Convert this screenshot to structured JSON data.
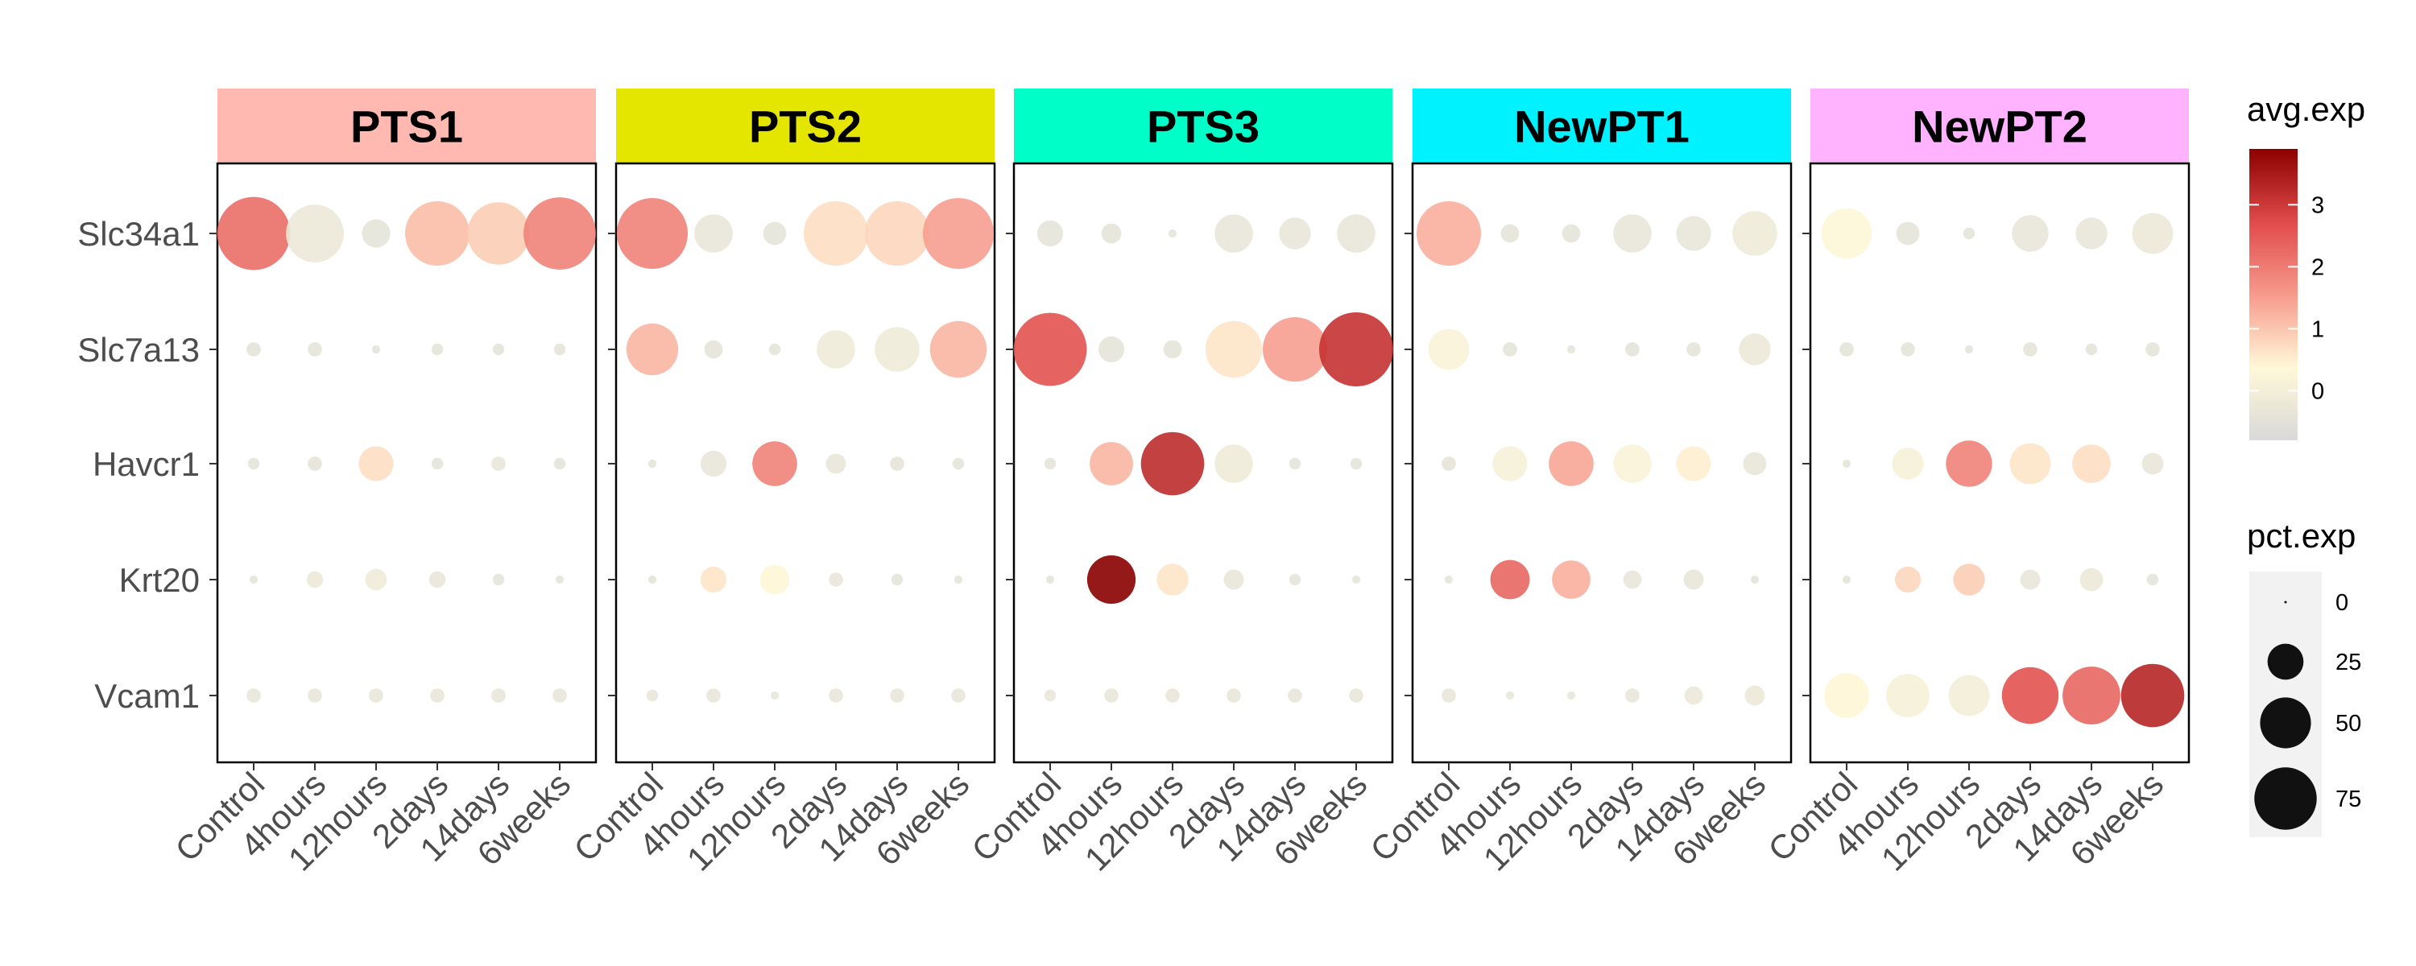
{
  "chart_data": {
    "type": "scatter",
    "facets": [
      {
        "name": "PTS1",
        "color": "#FFB9B0"
      },
      {
        "name": "PTS2",
        "color": "#E5E600"
      },
      {
        "name": "PTS3",
        "color": "#00FFC8"
      },
      {
        "name": "NewPT1",
        "color": "#00F2FF"
      },
      {
        "name": "NewPT2",
        "color": "#FFB3FF"
      }
    ],
    "genes": [
      "Slc34a1",
      "Slc7a13",
      "Havcr1",
      "Krt20",
      "Vcam1"
    ],
    "timepoints": [
      "Control",
      "4hours",
      "12hours",
      "2days",
      "14days",
      "6weeks"
    ],
    "pct_legend": {
      "title": "pct.exp",
      "breaks": [
        0,
        25,
        50,
        75
      ]
    },
    "avg_legend": {
      "title": "avg.exp",
      "breaks": [
        0,
        1,
        2,
        3
      ],
      "range": [
        -0.8,
        3.9
      ],
      "colors": [
        "#d9d9d9",
        "#fff8d8",
        "#f79a8c",
        "#e04a4a",
        "#8b0000"
      ]
    },
    "data": {
      "PTS1": {
        "Slc34a1": {
          "avg": [
            2.2,
            -0.2,
            -0.4,
            1.1,
            0.9,
            1.9
          ],
          "pct": [
            80,
            50,
            12,
            62,
            58,
            78
          ]
        },
        "Slc7a13": {
          "avg": [
            -0.4,
            -0.4,
            -0.4,
            -0.4,
            -0.4,
            -0.4
          ],
          "pct": [
            3,
            3,
            1,
            2,
            2,
            2
          ]
        },
        "Havcr1": {
          "avg": [
            -0.4,
            -0.4,
            0.7,
            -0.4,
            -0.3,
            -0.4
          ],
          "pct": [
            2,
            3,
            18,
            2,
            3,
            2
          ]
        },
        "Krt20": {
          "avg": [
            -0.4,
            -0.2,
            -0.1,
            -0.3,
            -0.4,
            -0.4
          ],
          "pct": [
            1,
            4,
            7,
            4,
            2,
            1
          ]
        },
        "Vcam1": {
          "avg": [
            -0.3,
            -0.3,
            -0.3,
            -0.3,
            -0.3,
            -0.3
          ],
          "pct": [
            3,
            3,
            3,
            3,
            3,
            3
          ]
        }
      },
      "PTS2": {
        "Slc34a1": {
          "avg": [
            1.9,
            -0.3,
            -0.4,
            0.7,
            0.8,
            1.5
          ],
          "pct": [
            75,
            22,
            8,
            62,
            62,
            75
          ]
        },
        "Slc7a13": {
          "avg": [
            1.2,
            -0.4,
            -0.4,
            -0.1,
            -0.1,
            1.2
          ],
          "pct": [
            40,
            5,
            2,
            22,
            30,
            48
          ]
        },
        "Havcr1": {
          "avg": [
            -0.4,
            -0.3,
            1.9,
            -0.3,
            -0.4,
            -0.4
          ],
          "pct": [
            1,
            10,
            30,
            6,
            3,
            2
          ]
        },
        "Krt20": {
          "avg": [
            -0.4,
            0.6,
            0.4,
            -0.3,
            -0.4,
            -0.4
          ],
          "pct": [
            1,
            10,
            13,
            3,
            2,
            1
          ]
        },
        "Vcam1": {
          "avg": [
            -0.3,
            -0.3,
            -0.3,
            -0.3,
            -0.3,
            -0.3
          ],
          "pct": [
            2,
            3,
            1,
            3,
            3,
            3
          ]
        }
      },
      "PTS3": {
        "Slc34a1": {
          "avg": [
            -0.4,
            -0.4,
            -0.4,
            -0.3,
            -0.3,
            -0.3
          ],
          "pct": [
            10,
            6,
            1,
            22,
            15,
            22
          ]
        },
        "Slc7a13": {
          "avg": [
            2.6,
            -0.4,
            -0.4,
            0.6,
            1.5,
            3.1
          ],
          "pct": [
            80,
            10,
            5,
            48,
            62,
            82
          ]
        },
        "Havcr1": {
          "avg": [
            -0.4,
            1.2,
            3.2,
            -0.1,
            -0.4,
            -0.4
          ],
          "pct": [
            2,
            28,
            60,
            22,
            2,
            2
          ]
        },
        "Krt20": {
          "avg": [
            -0.4,
            3.9,
            0.6,
            -0.3,
            -0.4,
            -0.4
          ],
          "pct": [
            1,
            35,
            15,
            6,
            2,
            1
          ]
        },
        "Vcam1": {
          "avg": [
            -0.3,
            -0.3,
            -0.3,
            -0.3,
            -0.3,
            -0.3
          ],
          "pct": [
            2,
            3,
            3,
            3,
            3,
            3
          ]
        }
      },
      "NewPT1": {
        "Slc34a1": {
          "avg": [
            1.3,
            -0.4,
            -0.4,
            -0.3,
            -0.3,
            -0.1
          ],
          "pct": [
            62,
            5,
            5,
            22,
            18,
            30
          ]
        },
        "Slc7a13": {
          "avg": [
            0.2,
            -0.4,
            -0.4,
            -0.4,
            -0.4,
            -0.2
          ],
          "pct": [
            25,
            3,
            1,
            3,
            3,
            15
          ]
        },
        "Havcr1": {
          "avg": [
            -0.4,
            0.1,
            1.4,
            0.2,
            0.5,
            -0.3
          ],
          "pct": [
            3,
            18,
            30,
            22,
            18,
            8
          ]
        },
        "Krt20": {
          "avg": [
            -0.4,
            2.3,
            1.3,
            -0.3,
            -0.3,
            -0.4
          ],
          "pct": [
            1,
            23,
            22,
            5,
            6,
            1
          ]
        },
        "Vcam1": {
          "avg": [
            -0.3,
            -0.3,
            -0.3,
            -0.3,
            -0.2,
            -0.2
          ],
          "pct": [
            3,
            1,
            1,
            3,
            5,
            6
          ]
        }
      },
      "NewPT2": {
        "Slc34a1": {
          "avg": [
            0.3,
            -0.4,
            -0.4,
            -0.3,
            -0.3,
            -0.2
          ],
          "pct": [
            38,
            8,
            2,
            20,
            15,
            25
          ]
        },
        "Slc7a13": {
          "avg": [
            -0.4,
            -0.4,
            -0.4,
            -0.4,
            -0.4,
            -0.4
          ],
          "pct": [
            3,
            3,
            1,
            3,
            2,
            3
          ]
        },
        "Havcr1": {
          "avg": [
            -0.4,
            0.1,
            1.9,
            0.6,
            0.7,
            -0.3
          ],
          "pct": [
            1,
            15,
            32,
            25,
            22,
            7
          ]
        },
        "Krt20": {
          "avg": [
            -0.4,
            0.8,
            0.9,
            -0.3,
            -0.2,
            -0.4
          ],
          "pct": [
            1,
            10,
            15,
            6,
            8,
            2
          ]
        },
        "Vcam1": {
          "avg": [
            0.4,
            0.1,
            0.0,
            2.6,
            2.3,
            3.3
          ],
          "pct": [
            30,
            28,
            25,
            48,
            50,
            60
          ]
        }
      }
    }
  }
}
